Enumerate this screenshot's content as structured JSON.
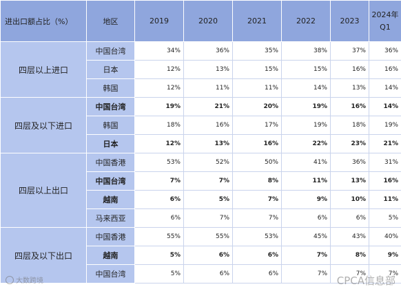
{
  "header": {
    "corner": "进出口额占比（%）",
    "region": "地区",
    "years": [
      "2019",
      "2020",
      "2021",
      "2022",
      "2023"
    ],
    "last_year_line1": "2024年",
    "last_year_line2": "Q1"
  },
  "groups": [
    {
      "label": "四层以上进口",
      "rows": [
        {
          "region": "中国台湾",
          "bold": false,
          "values": [
            "34%",
            "36%",
            "35%",
            "38%",
            "37%",
            "36%"
          ]
        },
        {
          "region": "日本",
          "bold": false,
          "values": [
            "12%",
            "13%",
            "15%",
            "15%",
            "16%",
            "16%"
          ]
        },
        {
          "region": "韩国",
          "bold": false,
          "values": [
            "12%",
            "11%",
            "11%",
            "14%",
            "13%",
            "14%"
          ]
        }
      ]
    },
    {
      "label": "四层及以下进口",
      "rows": [
        {
          "region": "中国台湾",
          "bold": true,
          "values": [
            "19%",
            "21%",
            "20%",
            "19%",
            "16%",
            "14%"
          ]
        },
        {
          "region": "韩国",
          "bold": false,
          "values": [
            "18%",
            "16%",
            "17%",
            "19%",
            "18%",
            "19%"
          ]
        },
        {
          "region": "日本",
          "bold": true,
          "values": [
            "12%",
            "13%",
            "16%",
            "22%",
            "23%",
            "21%"
          ]
        }
      ]
    },
    {
      "label": "四层以上出口",
      "rows": [
        {
          "region": "中国香港",
          "bold": false,
          "values": [
            "53%",
            "52%",
            "50%",
            "41%",
            "36%",
            "31%"
          ]
        },
        {
          "region": "中国台湾",
          "bold": true,
          "values": [
            "7%",
            "7%",
            "8%",
            "11%",
            "13%",
            "16%"
          ]
        },
        {
          "region": "越南",
          "bold": true,
          "values": [
            "6%",
            "5%",
            "7%",
            "9%",
            "10%",
            "11%"
          ]
        },
        {
          "region": "马来西亚",
          "bold": false,
          "values": [
            "6%",
            "7%",
            "7%",
            "6%",
            "6%",
            "5%"
          ]
        }
      ]
    },
    {
      "label": "四层及以下出口",
      "rows": [
        {
          "region": "中国香港",
          "bold": false,
          "values": [
            "55%",
            "55%",
            "53%",
            "45%",
            "43%",
            "40%"
          ]
        },
        {
          "region": "越南",
          "bold": true,
          "values": [
            "5%",
            "6%",
            "6%",
            "7%",
            "8%",
            "9%"
          ]
        },
        {
          "region": "中国台湾",
          "bold": false,
          "values": [
            "5%",
            "6%",
            "6%",
            "7%",
            "7%",
            "7%"
          ]
        }
      ]
    }
  ],
  "watermarks": {
    "left": "大数跨境",
    "right": "CPCA信息部"
  }
}
